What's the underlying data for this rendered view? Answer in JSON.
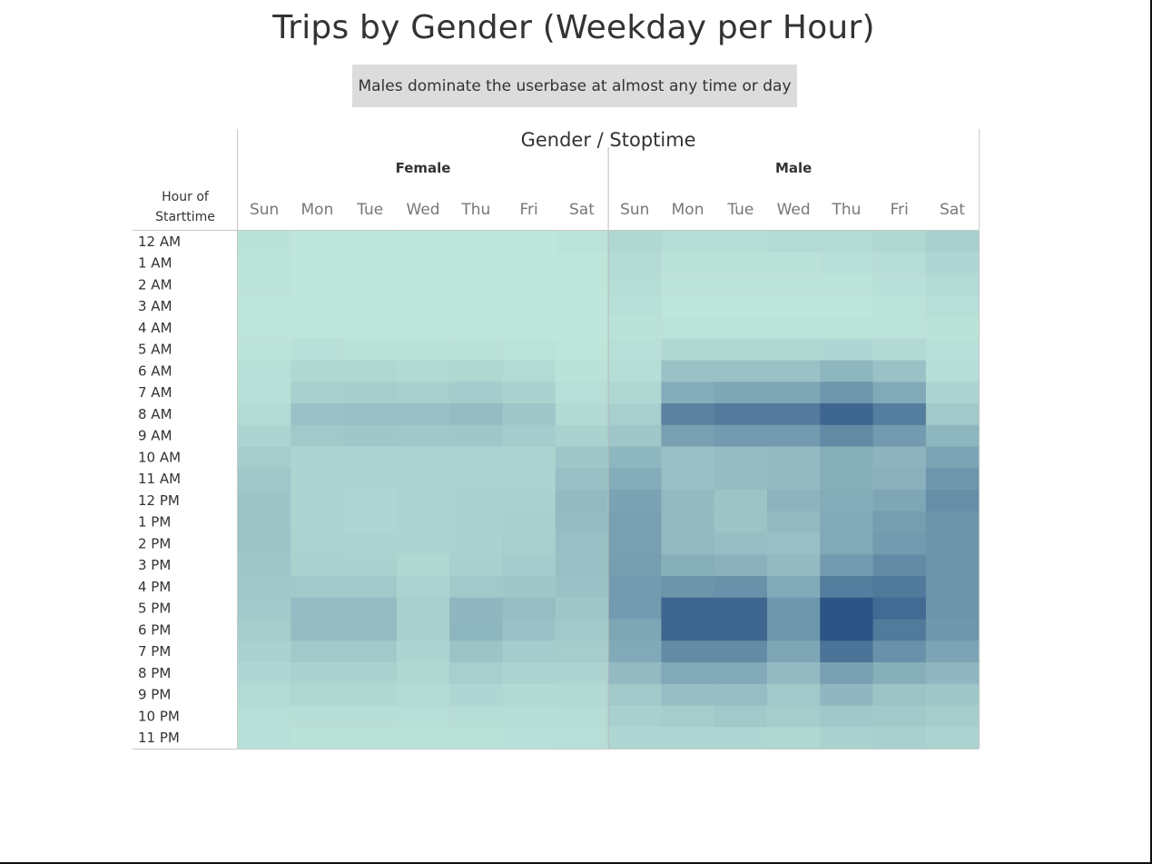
{
  "title": "Trips by Gender (Weekday per Hour)",
  "caption": "Males dominate the userbase at almost any time or day",
  "chart_data": {
    "type": "heatmap",
    "title": "Trips by Gender (Weekday per Hour)",
    "column_header_title": "Gender / Stoptime",
    "row_header_title": [
      "Hour of",
      "Starttime"
    ],
    "groups": [
      "Female",
      "Male"
    ],
    "days": [
      "Sun",
      "Mon",
      "Tue",
      "Wed",
      "Thu",
      "Fri",
      "Sat"
    ],
    "hours": [
      "12 AM",
      "1 AM",
      "2 AM",
      "3 AM",
      "4 AM",
      "5 AM",
      "6 AM",
      "7 AM",
      "8 AM",
      "9 AM",
      "10 AM",
      "11 AM",
      "12 PM",
      "1 PM",
      "2 PM",
      "3 PM",
      "4 PM",
      "5 PM",
      "6 PM",
      "7 PM",
      "8 PM",
      "9 PM",
      "10 PM",
      "11 PM"
    ],
    "color_scale": [
      "#bfe6db",
      "#2c5485"
    ],
    "legend": "none",
    "intensity": {
      "Female": [
        [
          0.03,
          0.0,
          0.0,
          0.0,
          0.0,
          0.0,
          0.02
        ],
        [
          0.02,
          0.0,
          0.0,
          0.0,
          0.0,
          0.0,
          0.01
        ],
        [
          0.02,
          0.0,
          0.0,
          0.0,
          0.0,
          0.0,
          0.01
        ],
        [
          0.01,
          0.0,
          0.0,
          0.0,
          0.0,
          0.0,
          0.0
        ],
        [
          0.01,
          0.01,
          0.0,
          0.0,
          0.0,
          0.0,
          0.0
        ],
        [
          0.02,
          0.04,
          0.03,
          0.03,
          0.03,
          0.02,
          0.01
        ],
        [
          0.04,
          0.1,
          0.1,
          0.09,
          0.1,
          0.08,
          0.03
        ],
        [
          0.05,
          0.16,
          0.17,
          0.16,
          0.18,
          0.14,
          0.05
        ],
        [
          0.08,
          0.25,
          0.27,
          0.26,
          0.29,
          0.22,
          0.09
        ],
        [
          0.12,
          0.2,
          0.22,
          0.21,
          0.22,
          0.18,
          0.14
        ],
        [
          0.17,
          0.12,
          0.12,
          0.12,
          0.13,
          0.12,
          0.22
        ],
        [
          0.21,
          0.12,
          0.12,
          0.12,
          0.13,
          0.13,
          0.27
        ],
        [
          0.23,
          0.12,
          0.11,
          0.12,
          0.14,
          0.14,
          0.3
        ],
        [
          0.23,
          0.12,
          0.11,
          0.12,
          0.14,
          0.15,
          0.29
        ],
        [
          0.23,
          0.13,
          0.12,
          0.12,
          0.14,
          0.16,
          0.27
        ],
        [
          0.22,
          0.14,
          0.14,
          0.1,
          0.15,
          0.18,
          0.27
        ],
        [
          0.21,
          0.2,
          0.2,
          0.13,
          0.2,
          0.22,
          0.25
        ],
        [
          0.19,
          0.29,
          0.29,
          0.16,
          0.32,
          0.28,
          0.22
        ],
        [
          0.17,
          0.29,
          0.29,
          0.15,
          0.33,
          0.25,
          0.2
        ],
        [
          0.14,
          0.2,
          0.2,
          0.12,
          0.24,
          0.18,
          0.17
        ],
        [
          0.11,
          0.14,
          0.14,
          0.1,
          0.16,
          0.13,
          0.12
        ],
        [
          0.08,
          0.1,
          0.1,
          0.08,
          0.11,
          0.09,
          0.09
        ],
        [
          0.05,
          0.06,
          0.06,
          0.05,
          0.07,
          0.06,
          0.07
        ],
        [
          0.04,
          0.03,
          0.03,
          0.03,
          0.03,
          0.04,
          0.05
        ]
      ],
      "Male": [
        [
          0.1,
          0.07,
          0.06,
          0.08,
          0.08,
          0.1,
          0.15
        ],
        [
          0.08,
          0.03,
          0.03,
          0.03,
          0.04,
          0.06,
          0.11
        ],
        [
          0.07,
          0.02,
          0.02,
          0.02,
          0.02,
          0.04,
          0.08
        ],
        [
          0.04,
          0.01,
          0.01,
          0.01,
          0.01,
          0.02,
          0.05
        ],
        [
          0.03,
          0.02,
          0.02,
          0.02,
          0.02,
          0.02,
          0.03
        ],
        [
          0.04,
          0.1,
          0.1,
          0.1,
          0.11,
          0.09,
          0.04
        ],
        [
          0.06,
          0.25,
          0.25,
          0.25,
          0.33,
          0.25,
          0.06
        ],
        [
          0.1,
          0.4,
          0.44,
          0.44,
          0.55,
          0.42,
          0.12
        ],
        [
          0.16,
          0.68,
          0.73,
          0.73,
          0.88,
          0.72,
          0.2
        ],
        [
          0.22,
          0.48,
          0.52,
          0.52,
          0.63,
          0.52,
          0.33
        ],
        [
          0.33,
          0.26,
          0.29,
          0.3,
          0.38,
          0.34,
          0.45
        ],
        [
          0.4,
          0.27,
          0.29,
          0.3,
          0.38,
          0.36,
          0.55
        ],
        [
          0.46,
          0.3,
          0.24,
          0.34,
          0.4,
          0.44,
          0.6
        ],
        [
          0.48,
          0.3,
          0.24,
          0.3,
          0.42,
          0.5,
          0.56
        ],
        [
          0.48,
          0.3,
          0.28,
          0.26,
          0.42,
          0.52,
          0.56
        ],
        [
          0.5,
          0.38,
          0.36,
          0.3,
          0.52,
          0.62,
          0.56
        ],
        [
          0.52,
          0.56,
          0.58,
          0.42,
          0.72,
          0.75,
          0.56
        ],
        [
          0.52,
          0.88,
          0.88,
          0.55,
          1.0,
          0.85,
          0.56
        ],
        [
          0.44,
          0.88,
          0.88,
          0.55,
          1.0,
          0.74,
          0.54
        ],
        [
          0.42,
          0.62,
          0.62,
          0.44,
          0.78,
          0.58,
          0.45
        ],
        [
          0.3,
          0.42,
          0.42,
          0.3,
          0.48,
          0.38,
          0.32
        ],
        [
          0.2,
          0.28,
          0.28,
          0.2,
          0.32,
          0.24,
          0.22
        ],
        [
          0.15,
          0.17,
          0.2,
          0.17,
          0.21,
          0.19,
          0.17
        ],
        [
          0.11,
          0.11,
          0.11,
          0.1,
          0.14,
          0.15,
          0.13
        ]
      ]
    }
  }
}
